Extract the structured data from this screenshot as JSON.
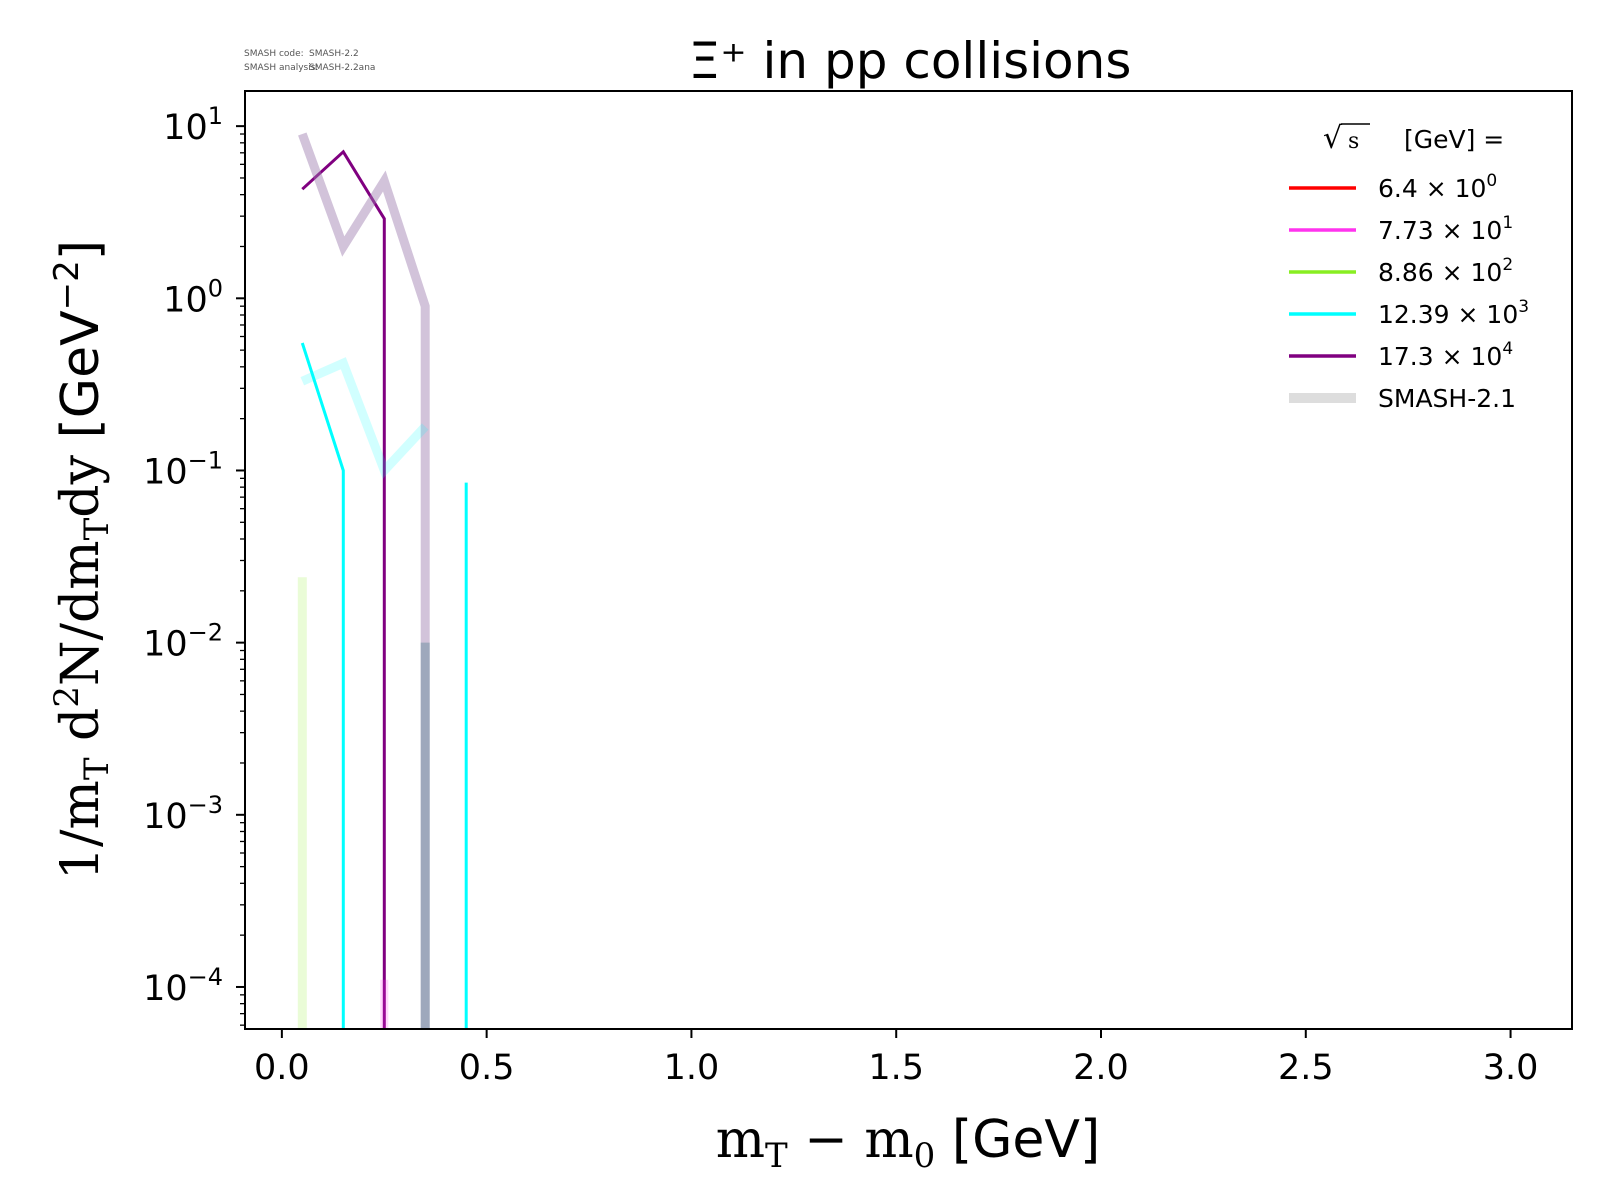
{
  "chart_data": {
    "type": "line",
    "title": "Ξ⁺ in pp collisions",
    "xlabel": "m_T − m_0 [GeV]",
    "ylabel": "1/m_T d²N/dm_T dy [GeV⁻²]",
    "xlim": [
      -0.09,
      3.15
    ],
    "ylim": [
      5.7e-05,
      16
    ],
    "yscale": "log",
    "grid": false,
    "legend_placement": "top-right",
    "x_ticks": [
      "0.0",
      "0.5",
      "1.0",
      "1.5",
      "2.0",
      "2.5",
      "3.0"
    ],
    "x_tick_values": [
      0.0,
      0.5,
      1.0,
      1.5,
      2.0,
      2.5,
      3.0
    ],
    "y_ticks": [
      {
        "value": 10,
        "base": "10",
        "exp": "1"
      },
      {
        "value": 1,
        "base": "10",
        "exp": "0"
      },
      {
        "value": 0.1,
        "base": "10",
        "exp": "−1"
      },
      {
        "value": 0.01,
        "base": "10",
        "exp": "−2"
      },
      {
        "value": 0.001,
        "base": "10",
        "exp": "−3"
      },
      {
        "value": 0.0001,
        "base": "10",
        "exp": "−4"
      }
    ],
    "legend_title": "√s [GeV] =",
    "legend": [
      {
        "label_main": "6.4 × 10",
        "label_exp": "0",
        "color": "#ff0000"
      },
      {
        "label_main": "7.73 × 10",
        "label_exp": "1",
        "color": "#ff33ee"
      },
      {
        "label_main": "8.86 × 10",
        "label_exp": "2",
        "color": "#88ee22"
      },
      {
        "label_main": "12.39 × 10",
        "label_exp": "3",
        "color": "#00ffff"
      },
      {
        "label_main": "17.3 × 10",
        "label_exp": "4",
        "color": "#800080"
      },
      {
        "label_main": "SMASH-2.1",
        "label_exp": "",
        "color": "#dddddd"
      }
    ],
    "series": [
      {
        "name": "17.3 × 10⁴",
        "color": "#800080",
        "width": 3,
        "opacity": 1,
        "x": [
          0.05,
          0.15,
          0.25,
          0.25
        ],
        "y": [
          4.3,
          7.1,
          2.9,
          5.7e-05
        ]
      },
      {
        "name": "12.39 × 10³",
        "color": "#00ffff",
        "width": 3,
        "opacity": 1,
        "x": [
          0.05,
          0.15,
          0.15
        ],
        "y": [
          0.55,
          0.1,
          5.7e-05
        ]
      },
      {
        "name": "12.39 × 10³",
        "color": "#00ffff",
        "width": 3,
        "opacity": 1,
        "x": [
          0.45,
          0.45
        ],
        "y": [
          0.085,
          5.7e-05
        ]
      },
      {
        "name": "SMASH-2.1",
        "color": "#9b7bad",
        "width": 9,
        "opacity": 0.45,
        "x": [
          0.05,
          0.15,
          0.25,
          0.35,
          0.35
        ],
        "y": [
          9.0,
          2.0,
          4.8,
          0.9,
          5.7e-05
        ]
      },
      {
        "name": "SMASH-2.1",
        "color": "#00ffff",
        "width": 9,
        "opacity": 0.18,
        "x": [
          0.05,
          0.15,
          0.25,
          0.35
        ],
        "y": [
          0.33,
          0.42,
          0.1,
          0.18
        ]
      },
      {
        "name": "SMASH-2.1",
        "color": "#4f7f8f",
        "width": 9,
        "opacity": 0.4,
        "x": [
          0.35,
          0.35
        ],
        "y": [
          0.01,
          5.7e-05
        ]
      },
      {
        "name": "SMASH-2.1",
        "color": "#88ee22",
        "width": 9,
        "opacity": 0.18,
        "x": [
          0.05,
          0.05
        ],
        "y": [
          0.024,
          5.7e-05
        ]
      },
      {
        "name": "SMASH-2.1",
        "color": "#ff33ee",
        "width": 8,
        "opacity": 0.2,
        "x": [
          0.25,
          0.25
        ],
        "y": [
          0.00011,
          5.7e-05
        ]
      }
    ]
  },
  "watermark": {
    "line1_key": "SMASH code:",
    "line1_val": "SMASH-2.2",
    "line2_key": "SMASH analysis:",
    "line2_val": "SMASH-2.2ana"
  }
}
